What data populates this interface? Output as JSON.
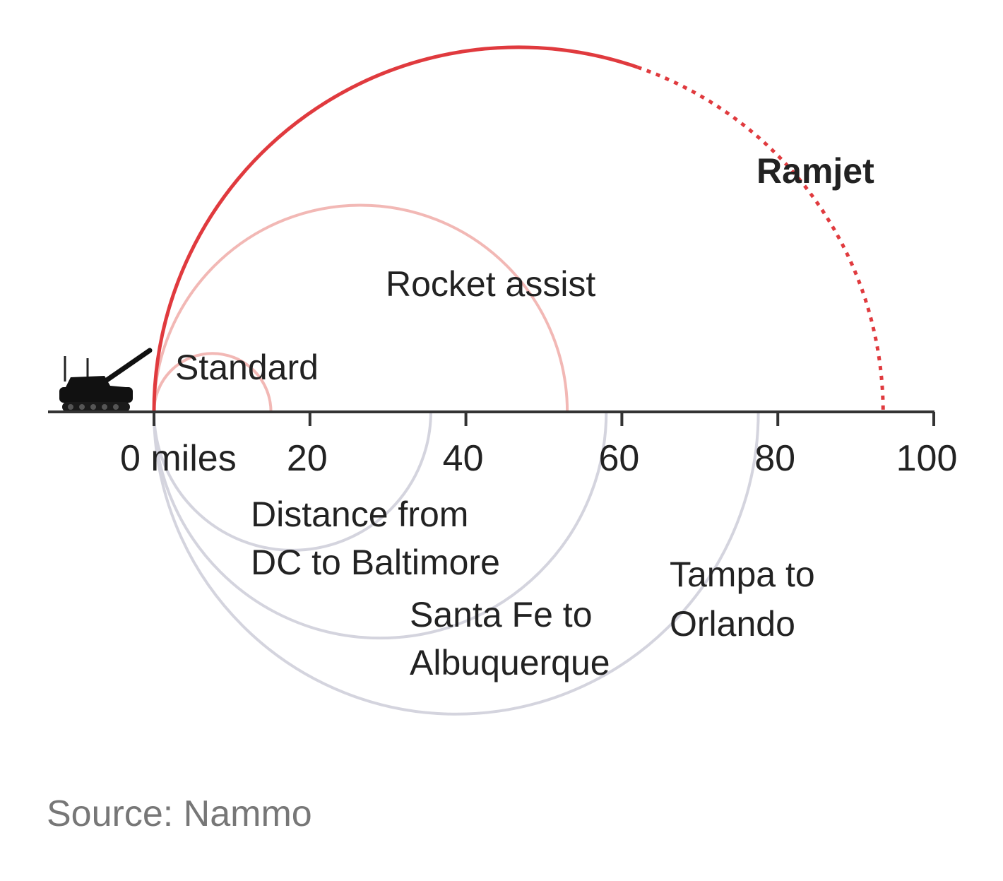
{
  "chart_data": {
    "type": "arc",
    "xlim": [
      0,
      100
    ],
    "x_ticks": [
      {
        "value": 0,
        "label": "0 miles"
      },
      {
        "value": 20,
        "label": "20"
      },
      {
        "value": 40,
        "label": "40"
      },
      {
        "value": 60,
        "label": "60"
      },
      {
        "value": 80,
        "label": "80"
      },
      {
        "value": 100,
        "label": "100"
      }
    ],
    "ranges": [
      {
        "name": "Standard",
        "range_miles": 15,
        "color": "#f2b8b5",
        "style": "solid"
      },
      {
        "name": "Rocket assist",
        "range_miles": 53,
        "color": "#f2b8b5",
        "style": "solid"
      },
      {
        "name": "Ramjet",
        "range_miles": 93.5,
        "solid_until_miles": 62,
        "color": "#e03a3e",
        "style": "solid-then-dotted"
      }
    ],
    "comparisons": [
      {
        "label_lines": [
          "Distance from",
          "DC to Baltimore"
        ],
        "distance_miles": 35.5,
        "color": "#d4d4de"
      },
      {
        "label_lines": [
          "Santa Fe to",
          "Albuquerque"
        ],
        "distance_miles": 58,
        "color": "#d4d4de"
      },
      {
        "label_lines": [
          "Tampa to",
          "Orlando"
        ],
        "distance_miles": 77.5,
        "color": "#d4d4de"
      }
    ],
    "axis_color": "#333333"
  },
  "source": "Source: Nammo",
  "icons": {
    "launcher": "self-propelled-howitzer-icon"
  }
}
